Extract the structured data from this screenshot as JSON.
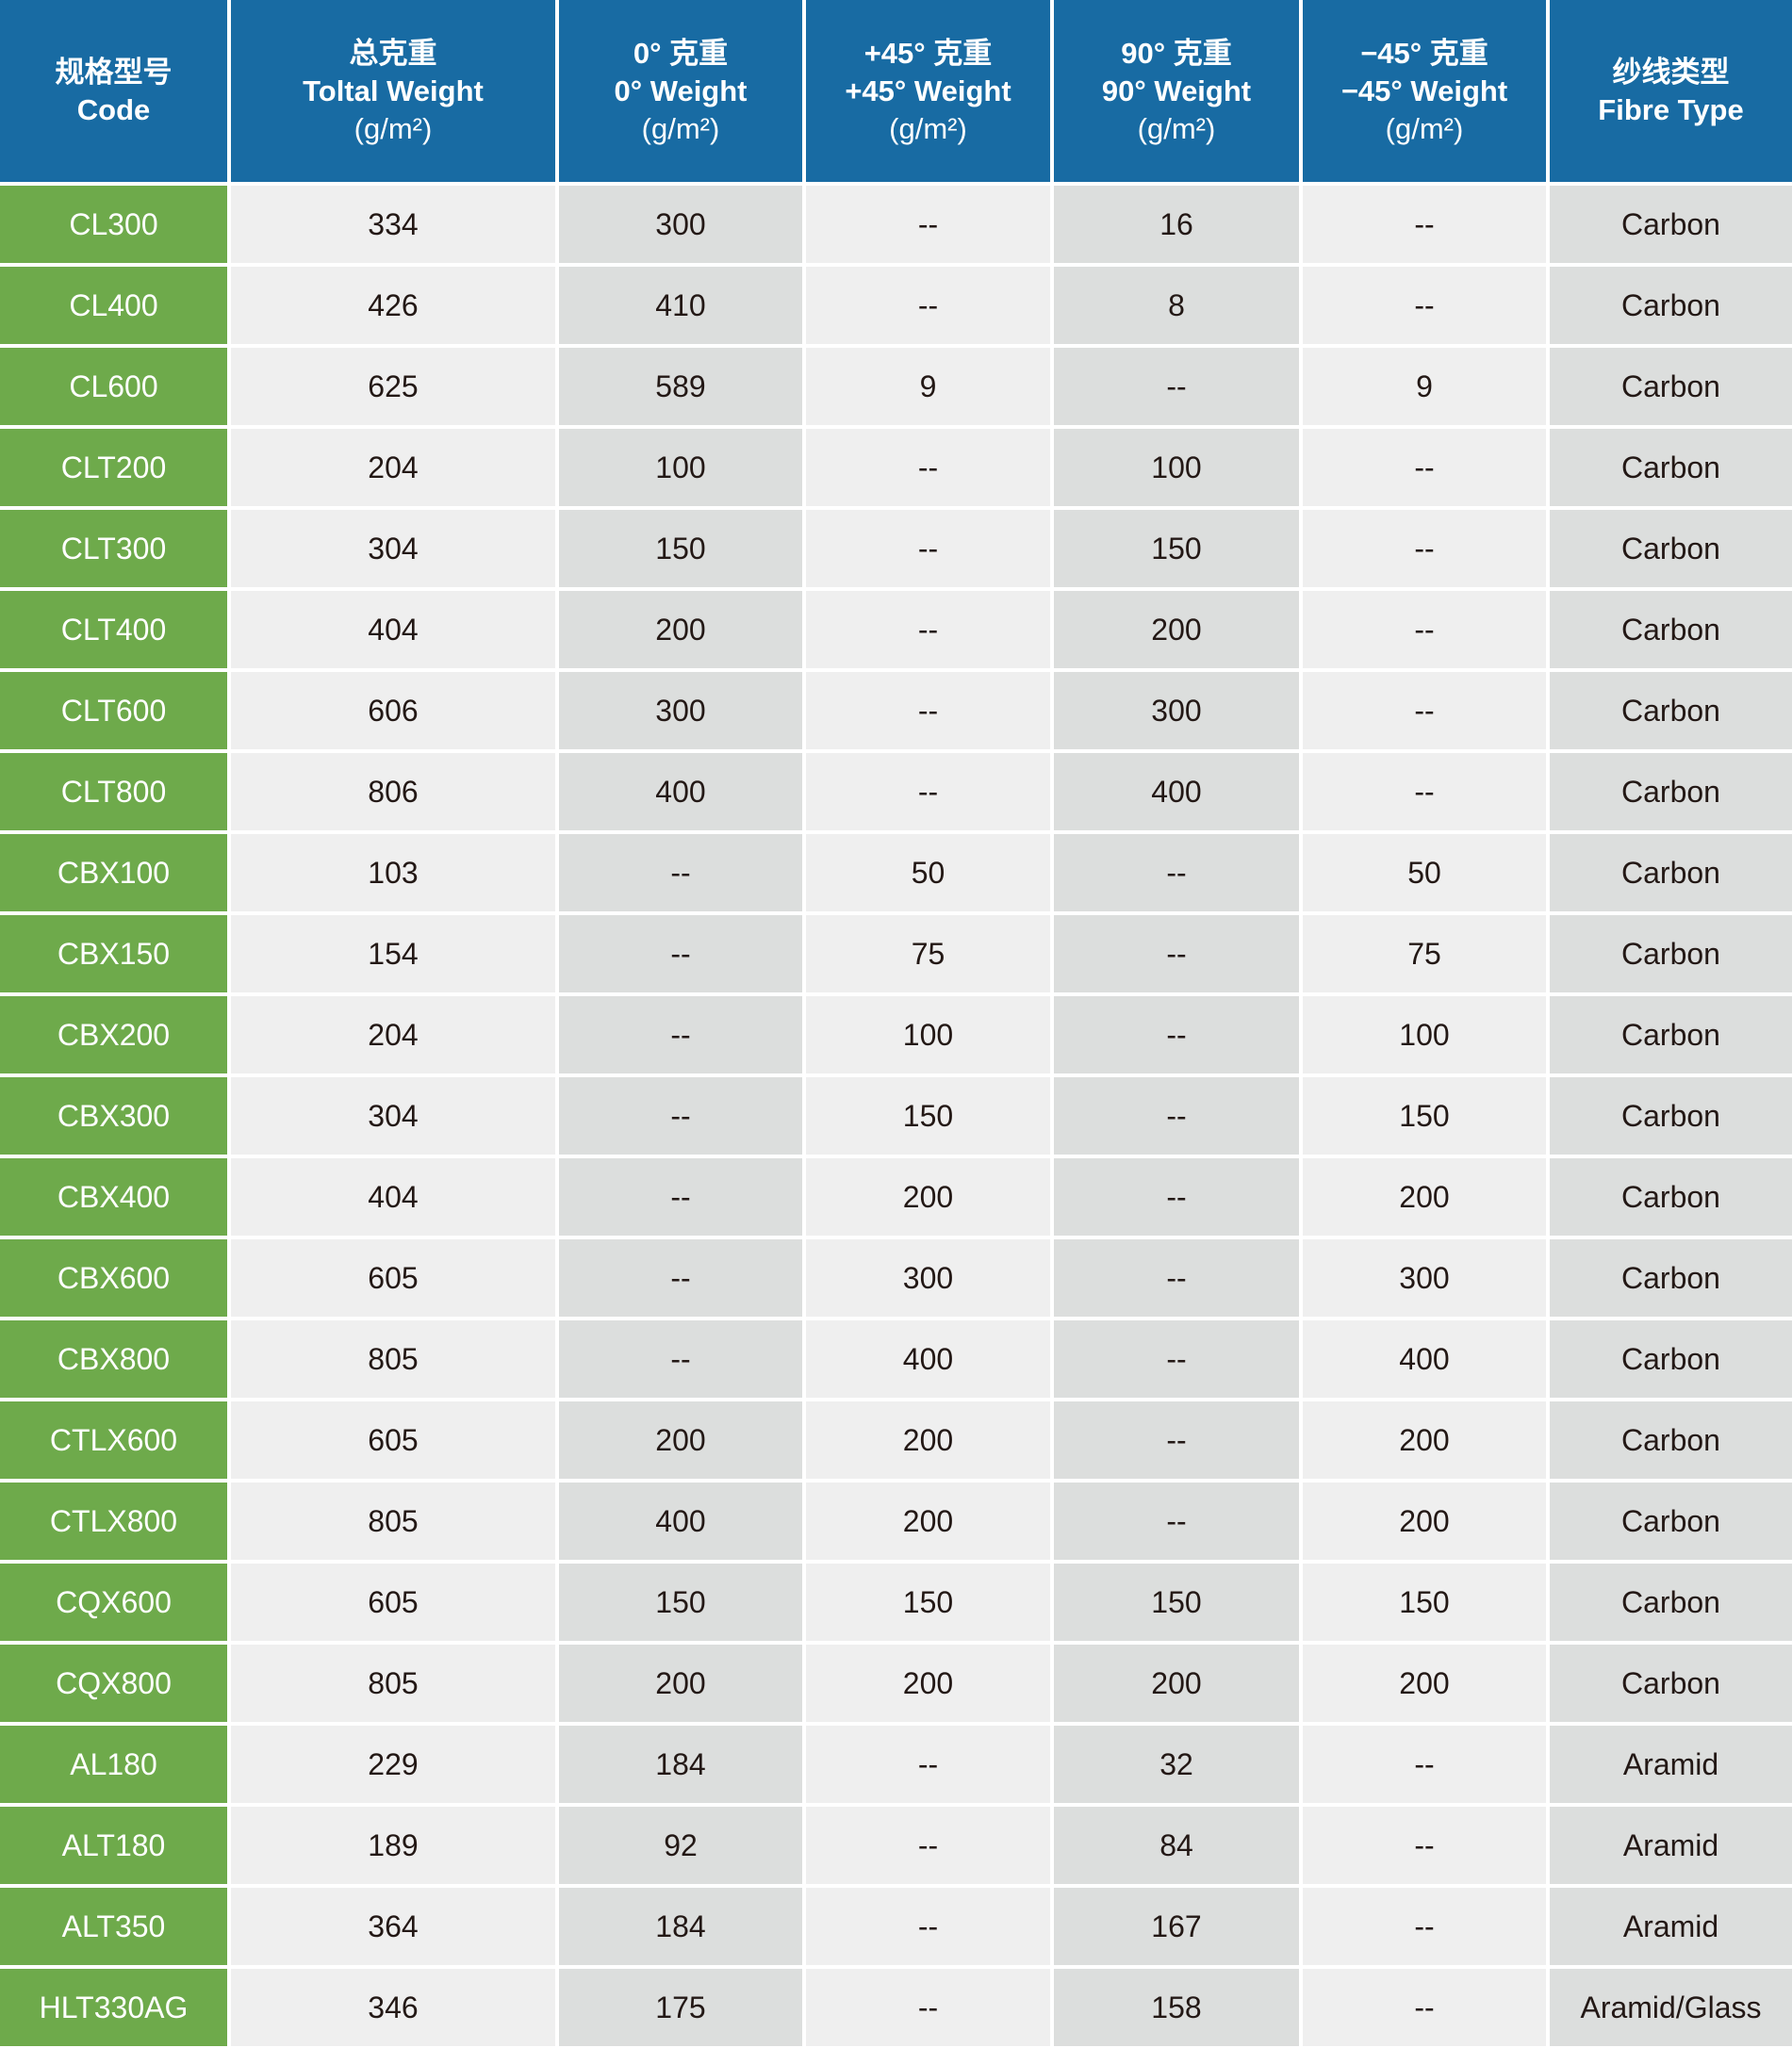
{
  "colors": {
    "header": "#186ba3",
    "code_column": "#6eaa4b",
    "cell_light": "#efefef",
    "cell_dark": "#dcdedd"
  },
  "headers": [
    {
      "zh": "规格型号",
      "en": "Code",
      "unit": ""
    },
    {
      "zh": "总克重",
      "en": "Toltal Weight",
      "unit": "(g/m²)"
    },
    {
      "zh": "0° 克重",
      "en": "0°  Weight",
      "unit": "(g/m²)"
    },
    {
      "zh": "+45° 克重",
      "en": "+45°  Weight",
      "unit": "(g/m²)"
    },
    {
      "zh": "90° 克重",
      "en": "90°  Weight",
      "unit": "(g/m²)"
    },
    {
      "zh": "−45° 克重",
      "en": "−45°  Weight",
      "unit": "(g/m²)"
    },
    {
      "zh": "纱线类型",
      "en": "Fibre Type",
      "unit": ""
    }
  ],
  "rows": [
    [
      "CL300",
      "334",
      "300",
      "--",
      "16",
      "--",
      "Carbon"
    ],
    [
      "CL400",
      "426",
      "410",
      "--",
      "8",
      "--",
      "Carbon"
    ],
    [
      "CL600",
      "625",
      "589",
      "9",
      "--",
      "9",
      "Carbon"
    ],
    [
      "CLT200",
      "204",
      "100",
      "--",
      "100",
      "--",
      "Carbon"
    ],
    [
      "CLT300",
      "304",
      "150",
      "--",
      "150",
      "--",
      "Carbon"
    ],
    [
      "CLT400",
      "404",
      "200",
      "--",
      "200",
      "--",
      "Carbon"
    ],
    [
      "CLT600",
      "606",
      "300",
      "--",
      "300",
      "--",
      "Carbon"
    ],
    [
      "CLT800",
      "806",
      "400",
      "--",
      "400",
      "--",
      "Carbon"
    ],
    [
      "CBX100",
      "103",
      "--",
      "50",
      "--",
      "50",
      "Carbon"
    ],
    [
      "CBX150",
      "154",
      "--",
      "75",
      "--",
      "75",
      "Carbon"
    ],
    [
      "CBX200",
      "204",
      "--",
      "100",
      "--",
      "100",
      "Carbon"
    ],
    [
      "CBX300",
      "304",
      "--",
      "150",
      "--",
      "150",
      "Carbon"
    ],
    [
      "CBX400",
      "404",
      "--",
      "200",
      "--",
      "200",
      "Carbon"
    ],
    [
      "CBX600",
      "605",
      "--",
      "300",
      "--",
      "300",
      "Carbon"
    ],
    [
      "CBX800",
      "805",
      "--",
      "400",
      "--",
      "400",
      "Carbon"
    ],
    [
      "CTLX600",
      "605",
      "200",
      "200",
      "--",
      "200",
      "Carbon"
    ],
    [
      "CTLX800",
      "805",
      "400",
      "200",
      "--",
      "200",
      "Carbon"
    ],
    [
      "CQX600",
      "605",
      "150",
      "150",
      "150",
      "150",
      "Carbon"
    ],
    [
      "CQX800",
      "805",
      "200",
      "200",
      "200",
      "200",
      "Carbon"
    ],
    [
      "AL180",
      "229",
      "184",
      "--",
      "32",
      "--",
      "Aramid"
    ],
    [
      "ALT180",
      "189",
      "92",
      "--",
      "84",
      "--",
      "Aramid"
    ],
    [
      "ALT350",
      "364",
      "184",
      "--",
      "167",
      "--",
      "Aramid"
    ],
    [
      "HLT330AG",
      "346",
      "175",
      "--",
      "158",
      "--",
      "Aramid/Glass"
    ]
  ]
}
